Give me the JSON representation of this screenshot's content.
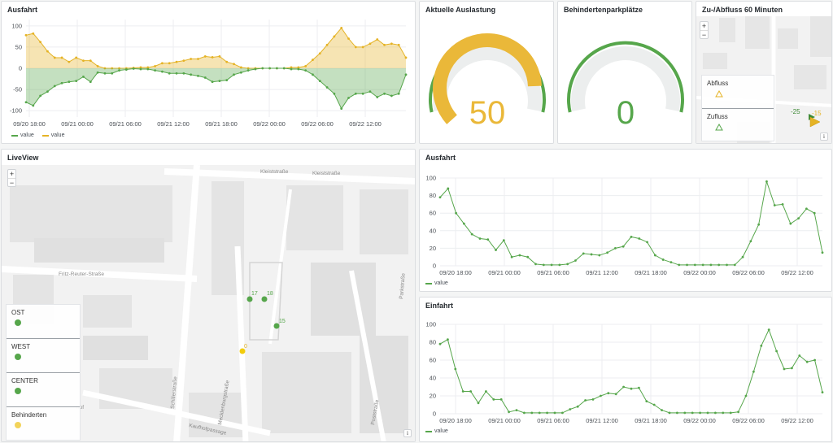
{
  "colors": {
    "green": "#56a64b",
    "yellow": "#e5b325",
    "green_fill": "#c4e1bf",
    "yellow_fill": "#f4dea1"
  },
  "panels": {
    "ausfahrt_top": {
      "title": "Ausfahrt",
      "legend": [
        "value",
        "value"
      ]
    },
    "auslastung": {
      "title": "Aktuelle Auslastung",
      "value": "50",
      "min": 0,
      "max": 60,
      "current": 50
    },
    "behinderten": {
      "title": "Behindertenparkplätze",
      "value": "0",
      "min": 0,
      "max": 8,
      "current": 0
    },
    "zuabfluss": {
      "title": "Zu-/Abfluss 60 Minuten",
      "zoom_in": "+",
      "zoom_out": "−",
      "abfluss_label": "Abfluss",
      "zufluss_label": "Zufluss",
      "marker_green": "-25",
      "marker_yellow": "-15",
      "info": "i"
    },
    "liveview": {
      "title": "LiveView",
      "zoom_in": "+",
      "zoom_out": "−",
      "info": "i",
      "streets": [
        "Kleiststraße",
        "Kleiststraße",
        "Fritz-Reuter-Straße",
        "Schillerstraße",
        "Kaufhofpassage",
        "Parkstraße",
        "Poststraße",
        "Mecklenburgstraße",
        "hof"
      ],
      "markers": [
        {
          "label": "17",
          "color": "green"
        },
        {
          "label": "18",
          "color": "green"
        },
        {
          "label": "15",
          "color": "green"
        },
        {
          "label": "0",
          "color": "yellow"
        }
      ],
      "sections": [
        {
          "label": "OST",
          "color": "green"
        },
        {
          "label": "WEST",
          "color": "green"
        },
        {
          "label": "CENTER",
          "color": "green"
        },
        {
          "label": "Behinderten",
          "color": "yellow"
        }
      ]
    },
    "ausfahrt_right": {
      "title": "Ausfahrt",
      "legend": "value"
    },
    "einfahrt": {
      "title": "Einfahrt",
      "legend": "value"
    }
  },
  "chart_data": [
    {
      "type": "area",
      "title": "Ausfahrt",
      "x_ticks": [
        "09/20 18:00",
        "09/21 00:00",
        "09/21 06:00",
        "09/21 12:00",
        "09/21 18:00",
        "09/22 00:00",
        "09/22 06:00",
        "09/22 12:00"
      ],
      "y_ticks": [
        "100",
        "50",
        "0",
        "-50",
        "-100"
      ],
      "ylim": [
        -115,
        115
      ],
      "series": [
        {
          "name": "value",
          "color": "#e5b325",
          "values": [
            78,
            82,
            62,
            40,
            25,
            25,
            15,
            25,
            18,
            18,
            5,
            0,
            0,
            0,
            0,
            1,
            2,
            2,
            5,
            12,
            12,
            15,
            18,
            22,
            22,
            28,
            26,
            28,
            15,
            10,
            2,
            0,
            0,
            0,
            0,
            0,
            0,
            2,
            2,
            5,
            20,
            35,
            55,
            75,
            95,
            70,
            50,
            50,
            58,
            68,
            55,
            58,
            55,
            25
          ]
        },
        {
          "name": "value",
          "color": "#56a64b",
          "values": [
            -80,
            -88,
            -65,
            -55,
            -42,
            -35,
            -32,
            -30,
            -20,
            -32,
            -10,
            -12,
            -12,
            -5,
            -3,
            -1,
            -2,
            -2,
            -5,
            -8,
            -12,
            -12,
            -12,
            -15,
            -18,
            -22,
            -32,
            -30,
            -28,
            -15,
            -10,
            -5,
            -2,
            0,
            0,
            0,
            0,
            -2,
            -2,
            -5,
            -15,
            -30,
            -45,
            -60,
            -95,
            -70,
            -60,
            -60,
            -55,
            -68,
            -60,
            -65,
            -60,
            -15
          ]
        }
      ]
    },
    {
      "type": "line",
      "title": "Ausfahrt",
      "x_ticks": [
        "09/20 18:00",
        "09/21 00:00",
        "09/21 06:00",
        "09/21 12:00",
        "09/21 18:00",
        "09/22 00:00",
        "09/22 06:00",
        "09/22 12:00"
      ],
      "y_ticks": [
        "100",
        "80",
        "60",
        "40",
        "20",
        "0"
      ],
      "ylim": [
        0,
        100
      ],
      "series": [
        {
          "name": "value",
          "values": [
            78,
            88,
            60,
            48,
            36,
            31,
            30,
            18,
            29,
            10,
            12,
            10,
            2,
            1,
            1,
            1,
            2,
            6,
            14,
            13,
            12,
            15,
            20,
            22,
            33,
            31,
            27,
            12,
            7,
            4,
            1,
            1,
            1,
            1,
            1,
            1,
            1,
            1,
            10,
            28,
            47,
            96,
            69,
            70,
            48,
            54,
            65,
            60,
            15
          ]
        }
      ]
    },
    {
      "type": "line",
      "title": "Einfahrt",
      "x_ticks": [
        "09/20 18:00",
        "09/21 00:00",
        "09/21 06:00",
        "09/21 12:00",
        "09/21 18:00",
        "09/22 00:00",
        "09/22 06:00",
        "09/22 12:00"
      ],
      "y_ticks": [
        "100",
        "80",
        "60",
        "40",
        "20",
        "0"
      ],
      "ylim": [
        0,
        100
      ],
      "series": [
        {
          "name": "value",
          "values": [
            78,
            83,
            50,
            25,
            25,
            12,
            25,
            16,
            16,
            2,
            4,
            1,
            1,
            1,
            1,
            1,
            1,
            5,
            8,
            15,
            16,
            20,
            23,
            22,
            30,
            28,
            29,
            14,
            10,
            4,
            1,
            1,
            1,
            1,
            1,
            1,
            1,
            1,
            1,
            2,
            20,
            47,
            76,
            94,
            70,
            50,
            51,
            65,
            58,
            60,
            24
          ]
        }
      ]
    }
  ]
}
